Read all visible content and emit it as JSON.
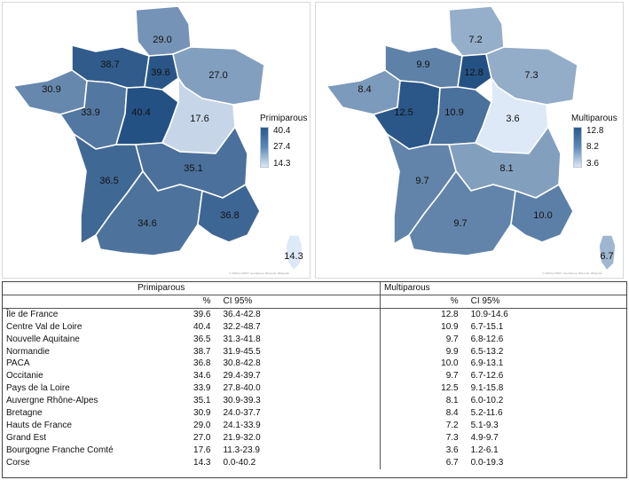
{
  "maps": [
    {
      "id": "primiparous",
      "legend": {
        "title": "Primiparous",
        "max": "40.4",
        "mid": "27.4",
        "min": "14.3"
      },
      "scale": {
        "min": 14.3,
        "max": 40.4
      },
      "values": {
        "hauts_de_france": "29.0",
        "normandie": "38.7",
        "ile_de_france": "39.6",
        "grand_est": "27.0",
        "bretagne": "30.9",
        "pays_de_la_loire": "33.9",
        "centre_val_de_loire": "40.4",
        "bourgogne_franche_comte": "17.6",
        "nouvelle_aquitaine": "36.5",
        "auvergne_rhone_alpes": "35.1",
        "occitanie": "34.6",
        "paca": "36.8",
        "corse": "14.3"
      },
      "credit": "© 2020 by MSFT, GeoNames, Microsoft, Wikipedia"
    },
    {
      "id": "multiparous",
      "legend": {
        "title": "Multiparous",
        "max": "12.8",
        "mid": "8.2",
        "min": "3.6"
      },
      "scale": {
        "min": 3.6,
        "max": 12.8
      },
      "values": {
        "hauts_de_france": "7.2",
        "normandie": "9.9",
        "ile_de_france": "12.8",
        "grand_est": "7.3",
        "bretagne": "8.4",
        "pays_de_la_loire": "12.5",
        "centre_val_de_loire": "10.9",
        "bourgogne_franche_comte": "3.6",
        "nouvelle_aquitaine": "9.7",
        "auvergne_rhone_alpes": "8.1",
        "occitanie": "9.7",
        "paca": "10.0",
        "corse": "6.7"
      },
      "credit": "© 2020 by MSFT, GeoNames, Microsoft, Wikipedia"
    }
  ],
  "table": {
    "group_headers": [
      "Primiparous",
      "Multiparous"
    ],
    "sub_headers": [
      "%",
      "CI 95%"
    ],
    "rows": [
      {
        "region": "Île de France",
        "p_pct": "39.6",
        "p_ci": "36.4-42.8",
        "m_pct": "12.8",
        "m_ci": "10.9-14.6"
      },
      {
        "region": "Centre Val de Loire",
        "p_pct": "40.4",
        "p_ci": "32.2-48.7",
        "m_pct": "10.9",
        "m_ci": "6.7-15.1"
      },
      {
        "region": "Nouvelle Aquitaine",
        "p_pct": "36.5",
        "p_ci": "31.3-41.8",
        "m_pct": "9.7",
        "m_ci": "6.8-12.6"
      },
      {
        "region": "Normandie",
        "p_pct": "38.7",
        "p_ci": "31.9-45.5",
        "m_pct": "9.9",
        "m_ci": "6.5-13.2"
      },
      {
        "region": "PACA",
        "p_pct": "36.8",
        "p_ci": "30.8-42.8",
        "m_pct": "10.0",
        "m_ci": "6.9-13.1"
      },
      {
        "region": "Occitanie",
        "p_pct": "34.6",
        "p_ci": "29.4-39.7",
        "m_pct": "9.7",
        "m_ci": "6.7-12.6"
      },
      {
        "region": "Pays de la Loire",
        "p_pct": "33.9",
        "p_ci": "27.8-40.0",
        "m_pct": "12.5",
        "m_ci": "9.1-15.8"
      },
      {
        "region": "Auvergne Rhône-Alpes",
        "p_pct": "35.1",
        "p_ci": "30.9-39.3",
        "m_pct": "8.1",
        "m_ci": "6.0-10.2"
      },
      {
        "region": "Bretagne",
        "p_pct": "30.9",
        "p_ci": "24.0-37.7",
        "m_pct": "8.4",
        "m_ci": "5.2-11.6"
      },
      {
        "region": "Hauts de France",
        "p_pct": "29.0",
        "p_ci": "24.1-33.9",
        "m_pct": "7.2",
        "m_ci": "5.1-9.3"
      },
      {
        "region": "Grand Est",
        "p_pct": "27.0",
        "p_ci": "21.9-32.0",
        "m_pct": "7.3",
        "m_ci": "4.9-9.7"
      },
      {
        "region": "Bourgogne Franche Comté",
        "p_pct": "17.6",
        "p_ci": "11.3-23.9",
        "m_pct": "3.6",
        "m_ci": "1.2-6.1"
      },
      {
        "region": "Corse",
        "p_pct": "14.3",
        "p_ci": "0.0-40.2",
        "m_pct": "6.7",
        "m_ci": "0.0-19.3"
      }
    ]
  },
  "colors": {
    "dark": "#245184",
    "light": "#dde9f6",
    "border": "#ffffff"
  }
}
